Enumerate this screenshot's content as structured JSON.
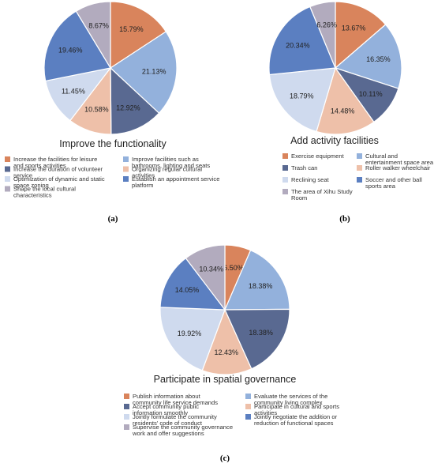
{
  "chart_data": [
    {
      "type": "pie",
      "panel": "(a)",
      "title": "Improve the functionality",
      "slices": [
        {
          "label": "Increase the facilities for leisure and sports activities",
          "value": 15.79,
          "display": "15.79%",
          "color": "#d9845c"
        },
        {
          "label": "Improve facilities such as bathrooms, lighting and seats",
          "value": 21.13,
          "display": "21.13%",
          "color": "#93b1dc"
        },
        {
          "label": "Increase the duration of volunteer service",
          "value": 12.92,
          "display": "12.92%",
          "color": "#596991"
        },
        {
          "label": "Organizing regular cultural activities",
          "value": 10.58,
          "display": "10.58%",
          "color": "#eec0a9"
        },
        {
          "label": "Optimization of dynamic and static space zoning",
          "value": 11.45,
          "display": "11.45%",
          "color": "#cfdaee"
        },
        {
          "label": "Establish an appointment service platform",
          "value": 19.46,
          "display": "19.46%",
          "color": "#5b7fc1"
        },
        {
          "label": "Shape the local cultural characteristics",
          "value": 8.67,
          "display": "8.67%",
          "color": "#b2abbe"
        }
      ]
    },
    {
      "type": "pie",
      "panel": "(b)",
      "title": "Add activity facilities",
      "slices": [
        {
          "label": "Exercise equipment",
          "value": 13.67,
          "display": "13.67%",
          "color": "#d9845c"
        },
        {
          "label": "Cultural and entertainment space area",
          "value": 16.35,
          "display": "16.35%",
          "color": "#93b1dc"
        },
        {
          "label": "Trash can",
          "value": 10.11,
          "display": "10.11%",
          "color": "#596991"
        },
        {
          "label": "Roller walker wheelchair",
          "value": 14.48,
          "display": "14.48%",
          "color": "#eec0a9"
        },
        {
          "label": "Reclining seat",
          "value": 18.79,
          "display": "18.79%",
          "color": "#cfdaee"
        },
        {
          "label": "Soccer and other ball sports area",
          "value": 20.34,
          "display": "20.34%",
          "color": "#5b7fc1"
        },
        {
          "label": "The area of Xihu Study Room",
          "value": 6.26,
          "display": "6.26%",
          "color": "#b2abbe"
        }
      ]
    },
    {
      "type": "pie",
      "panel": "(c)",
      "title": "Participate in spatial governance",
      "slices": [
        {
          "label": "Publish information about community life service demands",
          "value": 6.5,
          "display": "6.50%",
          "color": "#d9845c"
        },
        {
          "label": "Evaluate the services of the community living complex",
          "value": 18.38,
          "display": "18.38%",
          "color": "#93b1dc"
        },
        {
          "label": "Accept community public information smoothly",
          "value": 18.38,
          "display": "18.38%",
          "color": "#596991"
        },
        {
          "label": "Participate in cultural and sports activities",
          "value": 12.43,
          "display": "12.43%",
          "color": "#eec0a9"
        },
        {
          "label": "Jointly formulate the community residents' code of conduct",
          "value": 19.92,
          "display": "19.92%",
          "color": "#cfdaee"
        },
        {
          "label": "Jointly negotiate the addition or reduction of functional spaces",
          "value": 14.05,
          "display": "14.05%",
          "color": "#5b7fc1"
        },
        {
          "label": "Supervise the community governance work and offer suggestions",
          "value": 10.34,
          "display": "10.34%",
          "color": "#b2abbe"
        }
      ]
    }
  ]
}
